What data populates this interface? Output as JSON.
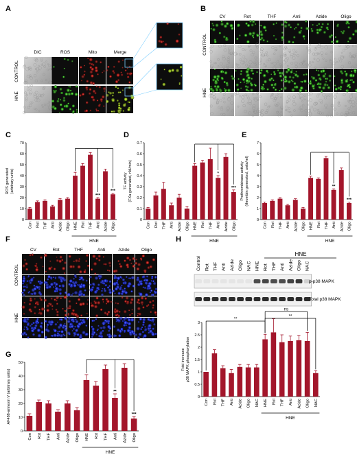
{
  "colors": {
    "bar": "#a3162b",
    "axis": "#000000",
    "micro_dark": "#0d0d0d",
    "ros_green": "#3fbf2f",
    "mito_red": "#b21b1b",
    "nuclei_blue": "#1a2bd9",
    "dic_gray": "#b8b8b8",
    "blot_band": "#161616",
    "blot_bg": "#f1f1f1"
  },
  "panel_letters": {
    "a": "A",
    "b": "B",
    "c": "C",
    "d": "D",
    "e": "E",
    "f": "F",
    "g": "G",
    "h": "H"
  },
  "panel_a": {
    "columns": [
      "DIC",
      "ROS",
      "Mito",
      "Merge"
    ],
    "rows": [
      "CONTROL",
      "HNE"
    ]
  },
  "panel_b": {
    "columns": [
      "CV",
      "Rot",
      "THF",
      "Anti",
      "Azide",
      "Oligo"
    ],
    "rows": [
      "CONTROL",
      "HNE"
    ]
  },
  "panel_f": {
    "columns": [
      "CV",
      "Rot",
      "THF",
      "Anti",
      "Azide",
      "Oligo"
    ],
    "rows": [
      "CONTROL",
      "HNE"
    ]
  },
  "panel_h": {
    "group_label": "HNE",
    "lanes": [
      "Control",
      "Rot",
      "THF",
      "Anti",
      "Azide",
      "Oligo",
      "NAC",
      "HNE",
      "Rot",
      "THF",
      "Anti",
      "Azide",
      "Oligo",
      "NAC"
    ],
    "blot_labels": [
      "p-p38 MAPK",
      "Total p38 MAPK"
    ],
    "p38_intensity": [
      0.05,
      0.05,
      0.05,
      0.05,
      0.05,
      0.05,
      0.05,
      0.75,
      0.78,
      0.75,
      0.75,
      0.8,
      0.85,
      0.15
    ],
    "total_intensity": [
      0.9,
      0.9,
      0.9,
      0.9,
      0.9,
      0.9,
      0.9,
      0.9,
      0.9,
      0.9,
      0.9,
      0.9,
      0.9,
      0.9
    ]
  },
  "chart_data": [
    {
      "id": "C",
      "type": "bar",
      "ylabel": [
        "ROS generated",
        "(arbitrary units)"
      ],
      "ylim": [
        0,
        70
      ],
      "yticks": [
        0,
        10,
        20,
        30,
        40,
        50,
        60,
        70
      ],
      "categories": [
        "Con",
        "Rot",
        "THF",
        "Anti",
        "Azide",
        "Oligo",
        "HNE",
        "Rot",
        "THF",
        "Anti",
        "Azide",
        "Oligo"
      ],
      "values": [
        10,
        16,
        17,
        12,
        18,
        19,
        40,
        49,
        59,
        19,
        44,
        23
      ],
      "errors": [
        1,
        1,
        1,
        1,
        1,
        1,
        3,
        2,
        2,
        1,
        2,
        1
      ],
      "annotations": [
        "",
        "",
        "",
        "",
        "",
        "",
        "",
        "",
        "",
        "***",
        "",
        "***"
      ],
      "group_label": "HNE",
      "group_start": 6,
      "group_end": 11,
      "bracket_from": 6,
      "bracket_to": [
        9,
        11
      ]
    },
    {
      "id": "D",
      "type": "bar",
      "ylabel": [
        "TF activity",
        "(FXa generated, nM/min)"
      ],
      "ylim": [
        0,
        0.7
      ],
      "yticks": [
        0,
        0.1,
        0.2,
        0.3,
        0.4,
        0.5,
        0.6,
        0.7
      ],
      "categories": [
        "Con",
        "Rot",
        "THF",
        "Anti",
        "Azide",
        "Oligo",
        "HNE",
        "Rot",
        "THF",
        "Anti",
        "Azide",
        "Oligo"
      ],
      "values": [
        0.1,
        0.22,
        0.28,
        0.13,
        0.2,
        0.1,
        0.49,
        0.52,
        0.55,
        0.38,
        0.57,
        0.25
      ],
      "errors": [
        0.01,
        0.03,
        0.06,
        0.02,
        0.03,
        0.02,
        0.02,
        0.02,
        0.1,
        0.02,
        0.03,
        0.02
      ],
      "annotations": [
        "",
        "",
        "",
        "",
        "",
        "",
        "",
        "",
        "",
        "*",
        "",
        "***"
      ],
      "group_label": "HNE",
      "group_start": 6,
      "group_end": 11,
      "bracket_from": 6,
      "bracket_to": [
        9,
        11
      ]
    },
    {
      "id": "E",
      "type": "bar",
      "ylabel": [
        "Prothrombinase activity",
        "(thrombin generated, units/ml)"
      ],
      "ylim": [
        0,
        7
      ],
      "yticks": [
        0,
        1,
        2,
        3,
        4,
        5,
        6,
        7
      ],
      "categories": [
        "Con",
        "Rot",
        "THF",
        "Anti",
        "Azide",
        "Oligo",
        "HNE",
        "Rot",
        "THF",
        "Anti",
        "Azide",
        "Oligo"
      ],
      "values": [
        1.5,
        1.7,
        1.9,
        1.3,
        1.8,
        1.0,
        3.8,
        3.7,
        5.6,
        2.7,
        4.5,
        1.5
      ],
      "errors": [
        0.1,
        0.1,
        0.1,
        0.1,
        0.1,
        0.1,
        0.15,
        0.1,
        0.15,
        0.1,
        0.2,
        0.1
      ],
      "annotations": [
        "",
        "",
        "",
        "",
        "",
        "",
        "",
        "",
        "",
        "**",
        "",
        "***"
      ],
      "group_label": "HNE",
      "group_start": 6,
      "group_end": 11,
      "bracket_from": 6,
      "bracket_to": [
        9,
        11
      ]
    },
    {
      "id": "G",
      "type": "bar",
      "ylabel": [
        "AF488-annexin V (arbitrary units)"
      ],
      "ylim": [
        0,
        50
      ],
      "yticks": [
        0,
        10,
        20,
        30,
        40,
        50
      ],
      "categories": [
        "Con",
        "Rot",
        "THF",
        "Anti",
        "Azide",
        "Oligo",
        "HNE",
        "Rot",
        "THF",
        "Anti",
        "Azide",
        "Oligo"
      ],
      "values": [
        11,
        21,
        20,
        14,
        20,
        15,
        37,
        33,
        45,
        24,
        46,
        9
      ],
      "errors": [
        1.5,
        1.5,
        2,
        1.5,
        2,
        2,
        4,
        3,
        3,
        3,
        3,
        1.5
      ],
      "annotations": [
        "",
        "",
        "",
        "",
        "",
        "",
        "",
        "",
        "",
        "**",
        "",
        "***"
      ],
      "group_label": "HNE",
      "group_start": 6,
      "group_end": 11,
      "bracket_from": 6,
      "bracket_to": [
        9,
        11
      ]
    },
    {
      "id": "H",
      "type": "bar",
      "ylabel": [
        "Fold increase",
        "p38 MAPK phosphorylation"
      ],
      "ylim": [
        0,
        3
      ],
      "yticks": [
        0,
        0.5,
        1,
        1.5,
        2,
        2.5,
        3
      ],
      "categories": [
        "Con",
        "Rot",
        "THF",
        "Anti",
        "Azide",
        "Oligo",
        "NAC",
        "HNE",
        "Rot",
        "THF",
        "Anti",
        "Azide",
        "Oligo",
        "NAC"
      ],
      "values": [
        1.0,
        1.75,
        1.15,
        0.95,
        1.2,
        1.18,
        1.18,
        2.32,
        2.6,
        2.2,
        2.25,
        2.28,
        2.25,
        0.95
      ],
      "errors": [
        0.0,
        0.15,
        0.1,
        0.15,
        0.1,
        0.12,
        0.12,
        0.2,
        0.55,
        0.3,
        0.2,
        0.2,
        0.35,
        0.1
      ],
      "annotations": [
        "",
        "",
        "",
        "",
        "",
        "",
        "",
        "",
        "",
        "",
        "",
        "",
        "",
        ""
      ],
      "group_label": "HNE",
      "group_start": 7,
      "group_end": 13,
      "sig_brackets": [
        {
          "from": 0,
          "to": 7,
          "label": "**"
        },
        {
          "from": 7,
          "to": 12,
          "label": "ns"
        },
        {
          "from": 7,
          "to": 13,
          "label": "**"
        }
      ]
    }
  ]
}
